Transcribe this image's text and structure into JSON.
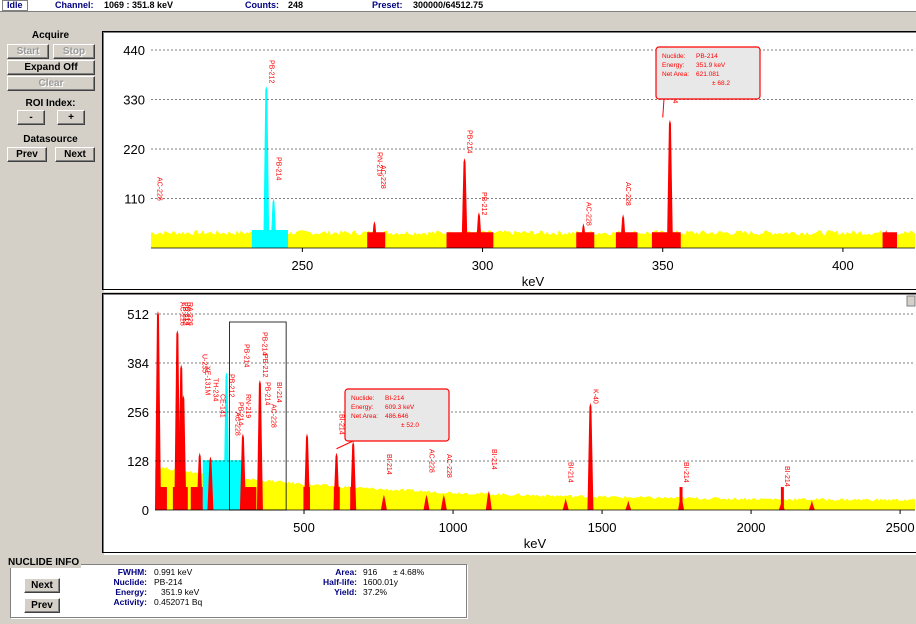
{
  "status": {
    "state": "Idle",
    "channel_label": "Channel:",
    "channel_value": "1069  :  351.8 keV",
    "counts_label": "Counts:",
    "counts_value": "248",
    "preset_label": "Preset:",
    "preset_value": "300000/64512.75"
  },
  "left_panel": {
    "acquire_header": "Acquire",
    "start": "Start",
    "stop": "Stop",
    "expand": "Expand Off",
    "clear": "Clear",
    "roi_header": "ROI Index:",
    "roi_minus": "-",
    "roi_plus": "+",
    "datasource_header": "Datasource",
    "prev": "Prev",
    "next": "Next"
  },
  "colors": {
    "baseline": "#ffff00",
    "roi": "#ff0000",
    "selected_roi": "#00ffff",
    "grid": "#000000",
    "marker_box": "#000000"
  },
  "chart_data": [
    {
      "type": "area",
      "xlabel": "keV",
      "xlim": [
        208,
        420
      ],
      "ylim": [
        0,
        440
      ],
      "yticks": [
        "440",
        "330",
        "220",
        "110"
      ],
      "xticks": [
        "250",
        "300",
        "350",
        "400"
      ],
      "peaks": [
        {
          "x": 240,
          "y": 360,
          "color": "cyan"
        },
        {
          "x": 242,
          "y": 110,
          "color": "cyan"
        },
        {
          "x": 270,
          "y": 60,
          "color": "red"
        },
        {
          "x": 295,
          "y": 200,
          "color": "red"
        },
        {
          "x": 299,
          "y": 80,
          "color": "red"
        },
        {
          "x": 328,
          "y": 55,
          "color": "red"
        },
        {
          "x": 339,
          "y": 75,
          "color": "red"
        },
        {
          "x": 352,
          "y": 285,
          "color": "red"
        },
        {
          "x": 412,
          "y": 40,
          "color": "red"
        }
      ],
      "peak_labels": [
        "PB-212",
        "PB-214",
        "AC-228",
        "RN-219",
        "AC-228",
        "PB-214",
        "PB-212",
        "AC-228",
        "AC-228",
        "PB-214"
      ],
      "tooltip": {
        "nuclide_label": "Nuclide:",
        "nuclide": "PB-214",
        "energy_label": "Energy:",
        "energy": "351.9 keV",
        "area_label": "Net Area:",
        "area": "621.081",
        "area_err": "± 68.2"
      }
    },
    {
      "type": "area",
      "xlabel": "keV",
      "xlim": [
        0,
        2550
      ],
      "ylim": [
        0,
        512
      ],
      "yticks": [
        "512",
        "384",
        "256",
        "128",
        "0"
      ],
      "xticks": [
        "500",
        "1000",
        "1500",
        "2000",
        "2500"
      ],
      "peaks": [
        {
          "x": 10,
          "y": 520,
          "color": "red"
        },
        {
          "x": 75,
          "y": 470,
          "color": "red"
        },
        {
          "x": 88,
          "y": 380,
          "color": "red"
        },
        {
          "x": 95,
          "y": 300,
          "color": "red"
        },
        {
          "x": 150,
          "y": 150,
          "color": "red"
        },
        {
          "x": 186,
          "y": 140,
          "color": "red"
        },
        {
          "x": 240,
          "y": 360,
          "color": "cyan"
        },
        {
          "x": 295,
          "y": 200,
          "color": "red"
        },
        {
          "x": 352,
          "y": 340,
          "color": "red"
        },
        {
          "x": 510,
          "y": 200,
          "color": "red"
        },
        {
          "x": 609,
          "y": 150,
          "color": "red"
        },
        {
          "x": 665,
          "y": 180,
          "color": "red"
        },
        {
          "x": 768,
          "y": 40,
          "color": "red"
        },
        {
          "x": 911,
          "y": 40,
          "color": "red"
        },
        {
          "x": 969,
          "y": 40,
          "color": "red"
        },
        {
          "x": 1120,
          "y": 50,
          "color": "red"
        },
        {
          "x": 1378,
          "y": 30,
          "color": "red"
        },
        {
          "x": 1461,
          "y": 280,
          "color": "red"
        },
        {
          "x": 1588,
          "y": 25,
          "color": "red"
        },
        {
          "x": 1765,
          "y": 40,
          "color": "red"
        },
        {
          "x": 2103,
          "y": 25,
          "color": "red"
        },
        {
          "x": 2204,
          "y": 25,
          "color": "red"
        }
      ],
      "peak_labels": [
        "AC-228",
        "PB-212",
        "PB-214",
        "RA-226",
        "U-235",
        "XE-131M",
        "TH-234",
        "CE-141",
        "PB-212",
        "AC-228",
        "PB-214",
        "RN-219",
        "PB-212",
        "PB-214",
        "AC-228",
        "BI-214",
        "BI-214",
        "AC-228",
        "AC-228",
        "BI-214",
        "BI-214",
        "BI-214",
        "K-40",
        "BI-214",
        "BI-214",
        "PB-214",
        "PB-214"
      ],
      "tooltip": {
        "nuclide_label": "Nuclide:",
        "nuclide": "BI-214",
        "energy_label": "Energy:",
        "energy": "609.3 keV",
        "area_label": "Net Area:",
        "area": "486.646",
        "area_err": "± 52.0"
      }
    }
  ],
  "nuclide_info": {
    "title": "NUCLIDE INFO",
    "next": "Next",
    "prev": "Prev",
    "fwhm_label": "FWHM:",
    "fwhm": "0.991 keV",
    "nuclide_label": "Nuclide:",
    "nuclide": "PB-214",
    "energy_label": "Energy:",
    "energy": "351.9 keV",
    "activity_label": "Activity:",
    "activity": "0.452071 Bq",
    "area_label": "Area:",
    "area": "916",
    "area_err": "± 4.68%",
    "halflife_label": "Half-life:",
    "halflife": "1600.01y",
    "yield_label": "Yield:",
    "yield": "37.2%"
  }
}
